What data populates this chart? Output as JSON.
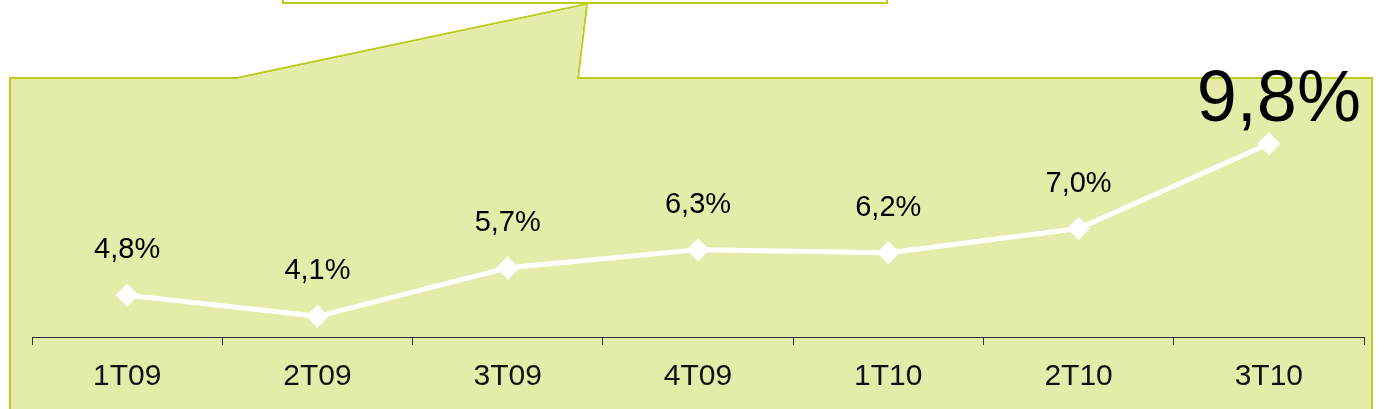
{
  "chart_data": {
    "type": "line",
    "categories": [
      "1T09",
      "2T09",
      "3T09",
      "4T09",
      "1T10",
      "2T10",
      "3T10"
    ],
    "values": [
      4.8,
      4.1,
      5.7,
      6.3,
      6.2,
      7.0,
      9.8
    ],
    "color": "#ffffff",
    "value_labels": [
      "4,8%",
      "4,1%",
      "5,7%",
      "6,3%",
      "6,2%",
      "7,0%",
      "9,8%"
    ],
    "marker": "diamond",
    "tick_labels": "x"
  }
}
